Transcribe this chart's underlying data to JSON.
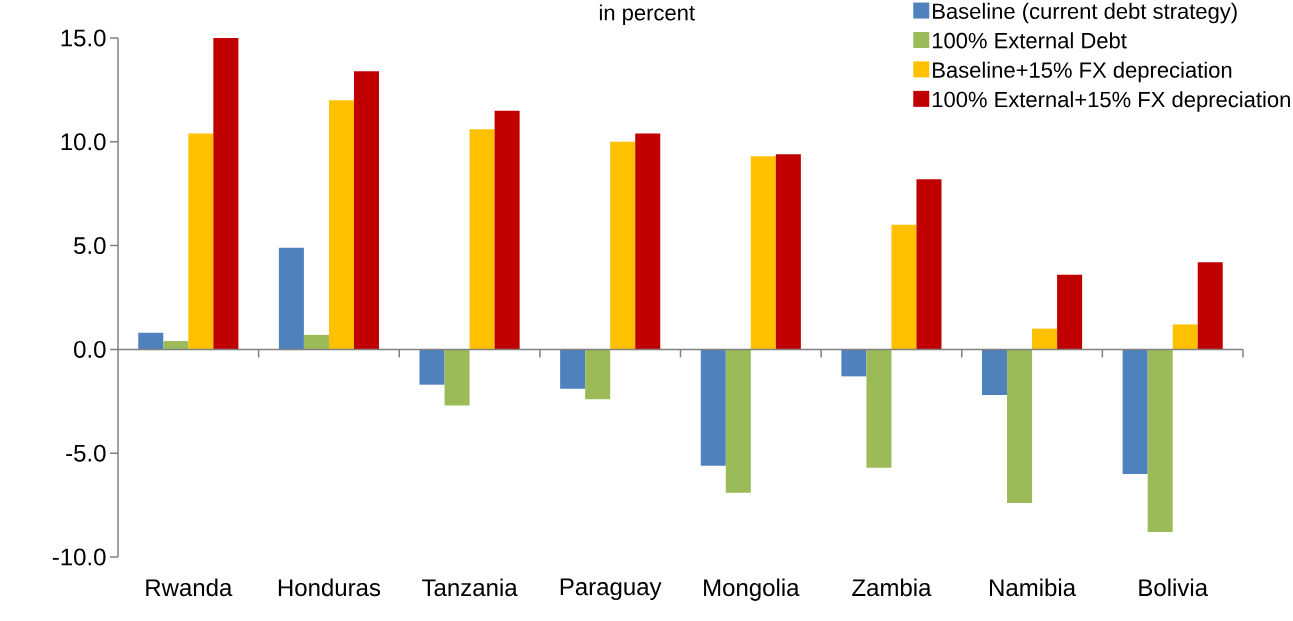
{
  "chart_data": {
    "type": "bar",
    "title": "in percent",
    "categories": [
      "Rwanda",
      "Honduras",
      "Tanzania",
      "Paraguay",
      "Mongolia",
      "Zambia",
      "Namibia",
      "Bolivia"
    ],
    "series": [
      {
        "name": "Baseline (current debt strategy)",
        "color": "#4f81bd",
        "values": [
          0.8,
          4.9,
          -1.7,
          -1.9,
          -5.6,
          -1.3,
          -2.2,
          -6.0
        ]
      },
      {
        "name": "100% External Debt",
        "color": "#9bbb59",
        "values": [
          0.4,
          0.7,
          -2.7,
          -2.4,
          -6.9,
          -5.7,
          -7.4,
          -8.8
        ]
      },
      {
        "name": "Baseline+15% FX depreciation",
        "color": "#ffc000",
        "values": [
          10.4,
          12.0,
          10.6,
          10.0,
          9.3,
          6.0,
          1.0,
          1.2
        ]
      },
      {
        "name": "100% External+15% FX depreciation",
        "color": "#c00000",
        "values": [
          15.0,
          13.4,
          11.5,
          10.4,
          9.4,
          8.2,
          3.6,
          4.2
        ]
      }
    ],
    "ylim": [
      -10,
      15
    ],
    "yticks": [
      {
        "value": -10,
        "label": "-10.0"
      },
      {
        "value": -5,
        "label": "-5.0"
      },
      {
        "value": 0,
        "label": "0.0"
      },
      {
        "value": 5,
        "label": "5.0"
      },
      {
        "value": 10,
        "label": "10.0"
      },
      {
        "value": 15,
        "label": "15.0"
      }
    ],
    "legend": "top right"
  }
}
